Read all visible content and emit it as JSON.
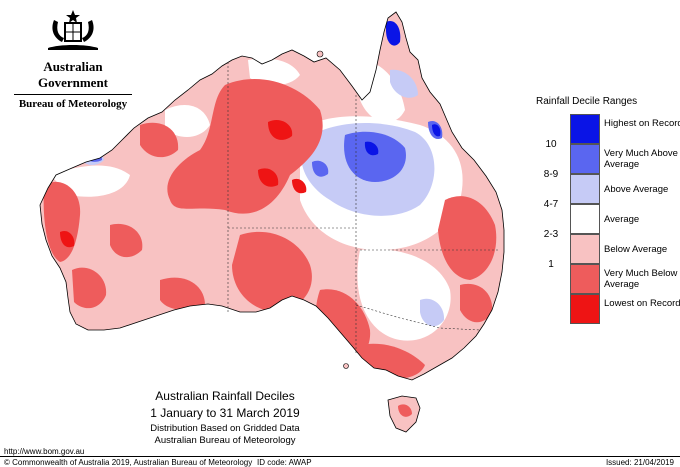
{
  "header": {
    "government": "Australian Government",
    "bureau": "Bureau of Meteorology"
  },
  "legend": {
    "title": "Rainfall Decile Ranges",
    "items": [
      {
        "range": "",
        "label": "Highest on Record",
        "color": "#0a14e6"
      },
      {
        "range": "10",
        "label": "Very Much Above Average",
        "color": "#5a66f0"
      },
      {
        "range": "8-9",
        "label": "Above Average",
        "color": "#c6cbf6"
      },
      {
        "range": "4-7",
        "label": "Average",
        "color": "#ffffff"
      },
      {
        "range": "2-3",
        "label": "Below Average",
        "color": "#f8c2c2"
      },
      {
        "range": "1",
        "label": "Very Much Below Average",
        "color": "#ee5c5c"
      },
      {
        "range": "",
        "label": "Lowest on Record",
        "color": "#ee1414"
      }
    ]
  },
  "caption": {
    "title": "Australian Rainfall Deciles",
    "period": "1 January to 31 March 2019",
    "subtitle1": "Distribution Based on Gridded Data",
    "subtitle2": "Australian Bureau of Meteorology"
  },
  "footer": {
    "url": "http://www.bom.gov.au",
    "copyright": "© Commonwealth of Australia 2019, Australian Bureau of Meteorology",
    "id_code": "ID code: AWAP",
    "issued": "Issued: 21/04/2019"
  }
}
